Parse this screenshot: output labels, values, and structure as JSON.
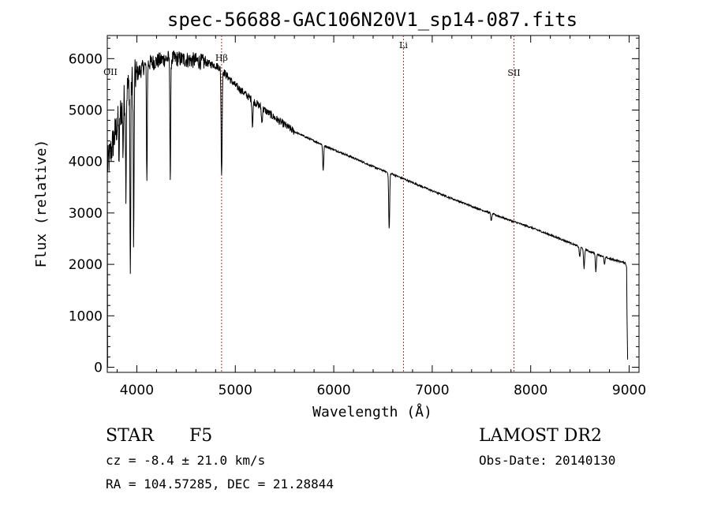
{
  "chart_data": {
    "type": "line",
    "title": "spec-56688-GAC106N20V1_sp14-087.fits",
    "xlabel": "Wavelength (Å)",
    "ylabel": "Flux (relative)",
    "xlim": [
      3700,
      9100
    ],
    "ylim": [
      -100,
      6450
    ],
    "xticks": [
      4000,
      5000,
      6000,
      7000,
      8000,
      9000
    ],
    "yticks": [
      0,
      1000,
      2000,
      3000,
      4000,
      5000,
      6000
    ],
    "continuum": {
      "x": [
        3700,
        3800,
        3900,
        4000,
        4100,
        4200,
        4300,
        4400,
        4500,
        4600,
        4700,
        4800,
        4861,
        4900,
        5000,
        5200,
        5400,
        5600,
        5800,
        6000,
        6200,
        6400,
        6600,
        6800,
        7000,
        7200,
        7400,
        7600,
        7800,
        8000,
        8200,
        8400,
        8600,
        8800,
        8960,
        8975
      ],
      "y": [
        3900,
        4700,
        5400,
        5700,
        5900,
        5950,
        6000,
        6000,
        5980,
        5960,
        5920,
        5870,
        5800,
        5700,
        5480,
        5150,
        4850,
        4580,
        4400,
        4230,
        4070,
        3900,
        3750,
        3590,
        3430,
        3280,
        3130,
        2990,
        2850,
        2720,
        2570,
        2420,
        2250,
        2110,
        2030,
        1950
      ]
    },
    "absorption_lines": [
      {
        "x": 3820,
        "depth": 800
      },
      {
        "x": 3860,
        "depth": 900
      },
      {
        "x": 3889,
        "depth": 1800
      },
      {
        "x": 3934,
        "depth": 3800
      },
      {
        "x": 3968,
        "depth": 3300
      },
      {
        "x": 4102,
        "depth": 2300
      },
      {
        "x": 4340,
        "depth": 2400
      },
      {
        "x": 4861,
        "depth": 2100
      },
      {
        "x": 5175,
        "depth": 500
      },
      {
        "x": 5270,
        "depth": 300
      },
      {
        "x": 5893,
        "depth": 500
      },
      {
        "x": 6563,
        "depth": 1100
      },
      {
        "x": 7600,
        "depth": 150
      },
      {
        "x": 8498,
        "depth": 200
      },
      {
        "x": 8542,
        "depth": 400
      },
      {
        "x": 8662,
        "depth": 350
      },
      {
        "x": 8750,
        "depth": 150
      }
    ],
    "marked_lines": [
      {
        "label": "OII",
        "x": 3727
      },
      {
        "label": "Hβ",
        "x": 4861
      },
      {
        "label": "Li",
        "x": 6708
      },
      {
        "label": "SII",
        "x": 7830
      }
    ]
  },
  "info": {
    "object_class": "STAR",
    "subclass": "F5",
    "survey": "LAMOST DR2",
    "redshift": "cz = -8.4 ± 21.0 km/s",
    "obs_date": "Obs-Date: 20140130",
    "coords": "RA = 104.57285, DEC =  21.28844"
  }
}
